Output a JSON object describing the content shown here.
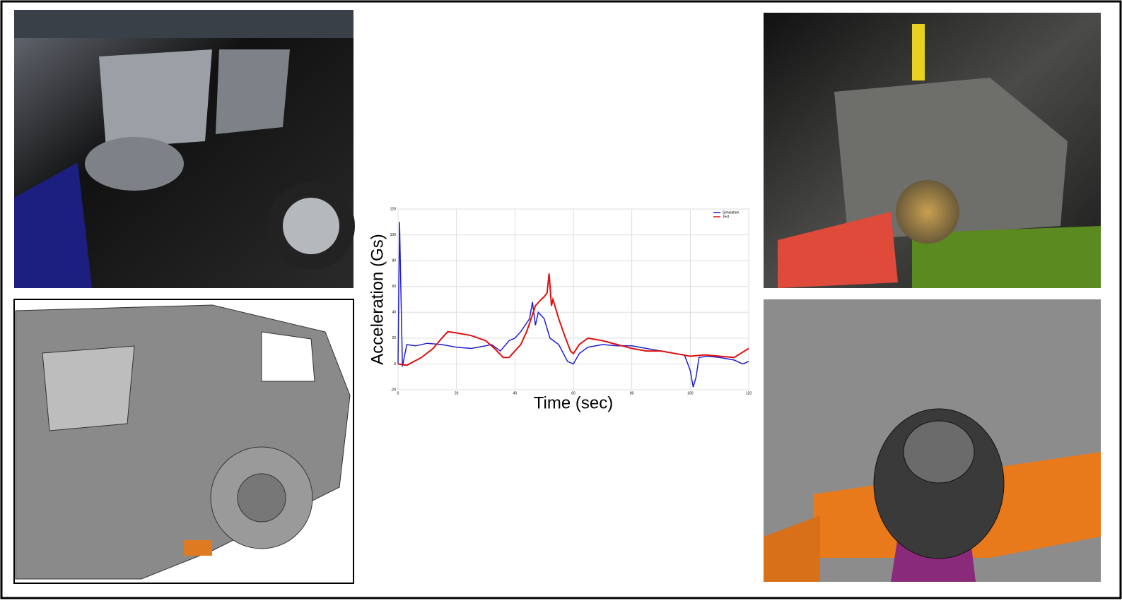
{
  "chart_data": {
    "type": "line",
    "x_label": "Time (sec)",
    "y_label": "Acceleration (Gs)",
    "xlim": [
      0,
      120
    ],
    "ylim": [
      -20,
      120
    ],
    "xticks": [
      0,
      20,
      40,
      60,
      80,
      100,
      120
    ],
    "yticks": [
      -20,
      0,
      20,
      40,
      60,
      80,
      100,
      120
    ],
    "grid": true,
    "legend": "top-right",
    "series": [
      {
        "name": "Simulation",
        "color": "#1f1fd0",
        "x": [
          0,
          0.5,
          1.5,
          3,
          6,
          10,
          15,
          20,
          25,
          30,
          32,
          35,
          38,
          40,
          42,
          45,
          46,
          47,
          48,
          50,
          52,
          55,
          58,
          60,
          62,
          65,
          70,
          75,
          80,
          85,
          90,
          95,
          98,
          100,
          101,
          102,
          103,
          106,
          110,
          115,
          118,
          120
        ],
        "values": [
          0,
          110,
          -2,
          15,
          14,
          16,
          15,
          13,
          12,
          14,
          15,
          10,
          18,
          20,
          25,
          35,
          48,
          30,
          40,
          35,
          20,
          15,
          2,
          0,
          8,
          13,
          15,
          14,
          14,
          12,
          10,
          8,
          7,
          -5,
          -18,
          -10,
          5,
          6,
          5,
          3,
          0,
          2
        ]
      },
      {
        "name": "Test",
        "color": "#e01010",
        "x": [
          0,
          3,
          8,
          12,
          15,
          17,
          20,
          25,
          30,
          33,
          36,
          38,
          40,
          42,
          44,
          46,
          47,
          49,
          50,
          51,
          51.7,
          52.5,
          53,
          55,
          57,
          59,
          60,
          62,
          65,
          70,
          75,
          80,
          85,
          90,
          95,
          100,
          105,
          110,
          115,
          120
        ],
        "values": [
          0,
          -1,
          5,
          12,
          20,
          25,
          24,
          22,
          18,
          12,
          5,
          5,
          10,
          15,
          25,
          38,
          45,
          50,
          52,
          55,
          70,
          45,
          50,
          35,
          22,
          10,
          8,
          15,
          20,
          18,
          15,
          12,
          10,
          10,
          8,
          6,
          7,
          6,
          5,
          12
        ]
      }
    ]
  }
}
